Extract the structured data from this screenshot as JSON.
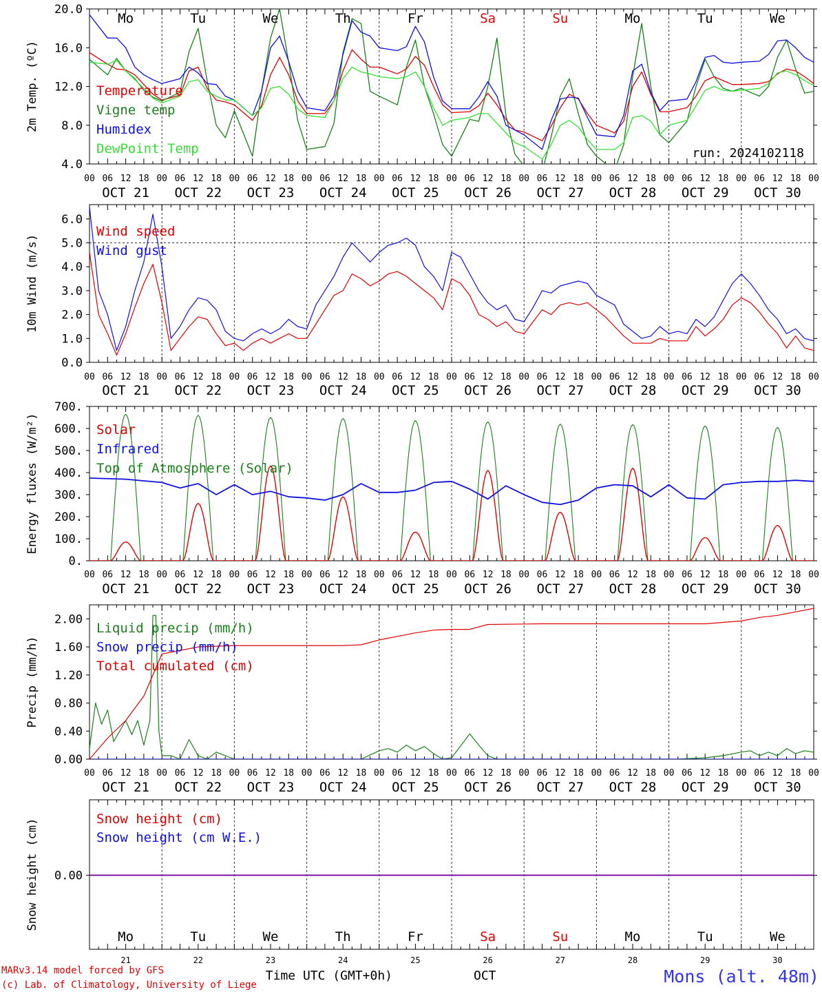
{
  "colors": {
    "red": "#e00000",
    "green": "#1a7f1a",
    "blue": "#1010e0",
    "lightgreen": "#33e033",
    "purple": "#8000a0",
    "station": "#3333ee",
    "axis": "#000000",
    "weekend": "#e00000"
  },
  "days": {
    "weekday_labels": [
      "Mo",
      "Tu",
      "We",
      "Th",
      "Fr",
      "Sa",
      "Su",
      "Mo",
      "Tu",
      "We"
    ],
    "weekend_flags": [
      false,
      false,
      false,
      false,
      false,
      true,
      true,
      false,
      false,
      false
    ],
    "date_labels": [
      "OCT 21",
      "OCT 22",
      "OCT 23",
      "OCT 24",
      "OCT 25",
      "OCT 26",
      "OCT 27",
      "OCT 28",
      "OCT 29",
      "OCT 30"
    ],
    "bottom_day_numbers": [
      "21",
      "22",
      "23",
      "24",
      "25",
      "26",
      "27",
      "28",
      "29",
      "30"
    ],
    "hour_ticks": [
      "00",
      "06",
      "12",
      "18"
    ],
    "final_hour_tick": "00"
  },
  "footer": {
    "model_line": "MARv3.14 model forced by GFS",
    "credit_line": "(c) Lab. of Climatology, University of Liege",
    "xlabel": "Time UTC (GMT+0h)",
    "month": "OCT",
    "station": "Mons (alt. 48m)"
  },
  "chart_data": [
    {
      "type": "line",
      "ylabel": "2m Temp. (ºC)",
      "ylim": [
        4.0,
        20.0
      ],
      "yticks": [
        "4.0",
        "8.0",
        "12.0",
        "16.0",
        "20.0"
      ],
      "ytick_values": [
        4,
        8,
        12,
        16,
        20
      ],
      "annotation": "run: 2024102118",
      "x_hours": [
        0,
        6,
        9,
        12,
        15,
        18,
        21,
        24,
        30,
        33,
        36,
        39,
        42,
        45,
        48,
        54,
        57,
        60,
        63,
        66,
        69,
        72,
        78,
        81,
        84,
        87,
        90,
        93,
        96,
        102,
        105,
        108,
        111,
        114,
        117,
        120,
        126,
        129,
        132,
        135,
        138,
        141,
        144,
        150,
        153,
        156,
        159,
        162,
        165,
        168,
        174,
        177,
        180,
        183,
        186,
        189,
        192,
        198,
        201,
        204,
        207,
        210,
        213,
        216,
        222,
        225,
        228,
        231,
        234,
        237,
        240
      ],
      "series": [
        {
          "name": "Temperature",
          "color": "red",
          "values": [
            15.5,
            14.3,
            13.8,
            13.7,
            13.2,
            12.2,
            11.2,
            10.6,
            11.1,
            13.6,
            14.0,
            11.8,
            10.6,
            10.4,
            10.1,
            8.5,
            10.0,
            13.2,
            15.0,
            13.2,
            10.5,
            9.2,
            9.2,
            10.5,
            13.6,
            15.8,
            14.8,
            14.0,
            14.0,
            13.3,
            13.8,
            15.1,
            14.2,
            12.0,
            10.1,
            9.3,
            9.4,
            10.0,
            11.3,
            10.1,
            8.6,
            7.5,
            7.3,
            6.4,
            7.9,
            9.8,
            11.2,
            10.7,
            9.2,
            8.0,
            7.2,
            8.4,
            12.0,
            13.5,
            11.2,
            9.4,
            9.4,
            9.8,
            11.0,
            12.6,
            13.0,
            12.6,
            12.2,
            12.2,
            12.3,
            12.5,
            13.3,
            13.8,
            13.6,
            13.0,
            12.3
          ]
        },
        {
          "name": "Vigne temp",
          "color": "green",
          "values": [
            14.8,
            13.2,
            14.9,
            13.6,
            12.8,
            11.6,
            10.9,
            10.5,
            11.4,
            15.6,
            18.0,
            12.6,
            8.0,
            6.7,
            9.5,
            4.8,
            11.5,
            17.0,
            20.0,
            14.5,
            8.5,
            5.5,
            5.8,
            8.2,
            15.5,
            19.0,
            18.5,
            11.5,
            11.0,
            10.1,
            14.0,
            16.8,
            12.0,
            9.2,
            6.0,
            4.8,
            8.6,
            8.4,
            12.0,
            17.0,
            9.0,
            5.0,
            3.8,
            3.2,
            6.8,
            11.0,
            12.8,
            9.2,
            6.0,
            4.8,
            3.3,
            6.0,
            13.0,
            18.5,
            12.0,
            7.0,
            6.2,
            8.4,
            12.0,
            14.8,
            13.0,
            11.8,
            11.5,
            11.8,
            11.0,
            12.0,
            15.0,
            16.8,
            13.8,
            11.3,
            11.5
          ]
        },
        {
          "name": "Humidex",
          "color": "blue",
          "values": [
            19.4,
            17.0,
            17.0,
            16.0,
            14.0,
            13.2,
            12.7,
            12.3,
            12.8,
            14.0,
            13.4,
            12.3,
            12.2,
            11.0,
            10.6,
            9.0,
            11.5,
            16.0,
            17.2,
            14.6,
            11.5,
            9.8,
            9.5,
            11.0,
            15.3,
            18.8,
            17.6,
            17.2,
            16.0,
            15.7,
            16.1,
            18.2,
            16.6,
            13.0,
            10.5,
            9.7,
            9.7,
            10.9,
            12.5,
            11.0,
            8.0,
            7.5,
            7.0,
            5.5,
            8.5,
            10.7,
            10.9,
            10.8,
            8.8,
            7.0,
            6.8,
            9.0,
            13.6,
            14.3,
            11.4,
            9.5,
            10.5,
            10.7,
            12.5,
            15.0,
            15.2,
            14.5,
            14.4,
            14.5,
            14.6,
            15.3,
            16.7,
            16.8,
            16.0,
            15.0,
            14.5
          ]
        },
        {
          "name": "DewPoint Temp",
          "color": "lightgreen",
          "values": [
            14.5,
            14.3,
            14.7,
            13.6,
            12.7,
            11.8,
            10.8,
            10.3,
            11.0,
            12.5,
            12.7,
            11.5,
            11.0,
            10.6,
            10.6,
            9.0,
            9.8,
            11.8,
            12.0,
            11.2,
            9.7,
            9.0,
            8.8,
            10.5,
            12.8,
            14.0,
            13.5,
            13.3,
            13.0,
            12.8,
            13.0,
            13.5,
            12.0,
            9.8,
            8.0,
            8.5,
            8.8,
            9.2,
            9.2,
            8.2,
            7.2,
            6.2,
            5.8,
            4.5,
            6.0,
            8.0,
            8.5,
            7.8,
            6.5,
            5.5,
            5.5,
            6.2,
            8.8,
            9.0,
            8.4,
            7.0,
            8.0,
            8.5,
            10.0,
            11.6,
            12.0,
            11.6,
            11.5,
            11.6,
            11.8,
            12.3,
            13.4,
            13.6,
            13.2,
            12.6,
            12.1
          ]
        }
      ],
      "legend": [
        "Temperature",
        "Vigne temp",
        "Humidex",
        "DewPoint Temp"
      ]
    },
    {
      "type": "line",
      "ylabel": "10m Wind (m/s)",
      "ylim": [
        0.0,
        6.6
      ],
      "yticks": [
        "0.0",
        "1.0",
        "2.0",
        "3.0",
        "4.0",
        "5.0",
        "6.0"
      ],
      "ytick_values": [
        0,
        1,
        2,
        3,
        4,
        5,
        6
      ],
      "dashed_reference": 5.0,
      "x_hours": [
        0,
        3,
        6,
        9,
        12,
        15,
        18,
        21,
        24,
        27,
        30,
        33,
        36,
        39,
        42,
        45,
        48,
        51,
        54,
        57,
        60,
        63,
        66,
        69,
        72,
        75,
        78,
        81,
        84,
        87,
        90,
        93,
        96,
        99,
        102,
        105,
        108,
        111,
        114,
        117,
        120,
        123,
        126,
        129,
        132,
        135,
        138,
        141,
        144,
        147,
        150,
        153,
        156,
        159,
        162,
        165,
        168,
        171,
        174,
        177,
        180,
        183,
        186,
        189,
        192,
        195,
        198,
        201,
        204,
        207,
        210,
        213,
        216,
        219,
        222,
        225,
        228,
        231,
        234,
        237,
        240
      ],
      "series": [
        {
          "name": "Wind speed",
          "color": "red",
          "values": [
            4.6,
            2.0,
            1.2,
            0.3,
            1.2,
            2.3,
            3.3,
            4.1,
            2.5,
            0.5,
            1.0,
            1.5,
            1.9,
            1.8,
            1.2,
            0.7,
            0.8,
            0.5,
            0.8,
            1.0,
            0.8,
            1.0,
            1.2,
            1.0,
            1.0,
            1.6,
            2.2,
            2.8,
            3.0,
            3.7,
            3.5,
            3.2,
            3.4,
            3.7,
            3.8,
            3.6,
            3.3,
            3.0,
            2.7,
            2.2,
            3.5,
            3.3,
            2.8,
            2.0,
            1.8,
            1.5,
            1.7,
            1.3,
            1.2,
            1.7,
            2.2,
            2.0,
            2.4,
            2.5,
            2.4,
            2.5,
            2.2,
            1.9,
            1.5,
            1.1,
            0.8,
            0.8,
            0.8,
            1.0,
            0.9,
            0.9,
            0.9,
            1.5,
            1.1,
            1.4,
            1.8,
            2.4,
            2.7,
            2.5,
            2.1,
            1.6,
            1.2,
            0.6,
            1.1,
            0.6,
            0.5
          ]
        },
        {
          "name": "Wind gust",
          "color": "blue",
          "values": [
            6.5,
            3.0,
            2.0,
            0.5,
            1.5,
            3.0,
            4.2,
            6.2,
            4.0,
            1.0,
            1.5,
            2.2,
            2.7,
            2.6,
            2.2,
            1.3,
            1.0,
            0.9,
            1.2,
            1.4,
            1.2,
            1.4,
            1.8,
            1.5,
            1.4,
            2.4,
            3.0,
            3.6,
            4.4,
            5.0,
            4.6,
            4.2,
            4.6,
            4.9,
            5.0,
            5.2,
            4.9,
            4.0,
            3.6,
            3.0,
            4.6,
            4.4,
            3.7,
            3.0,
            2.5,
            2.2,
            2.4,
            1.8,
            1.7,
            2.3,
            3.0,
            2.9,
            3.2,
            3.3,
            3.4,
            3.3,
            2.8,
            2.6,
            2.4,
            1.6,
            1.3,
            1.0,
            1.1,
            1.5,
            1.2,
            1.3,
            1.2,
            1.8,
            1.5,
            1.9,
            2.6,
            3.3,
            3.7,
            3.3,
            2.8,
            2.2,
            1.8,
            1.2,
            1.4,
            1.0,
            0.9
          ]
        }
      ],
      "legend": [
        "Wind speed",
        "Wind gust"
      ]
    },
    {
      "type": "line",
      "ylabel": "Energy fluxes (W/m²)",
      "ylim": [
        0,
        700
      ],
      "yticks": [
        "0.",
        "100.",
        "200.",
        "300.",
        "400.",
        "500.",
        "600.",
        "700."
      ],
      "ytick_values": [
        0,
        100,
        200,
        300,
        400,
        500,
        600,
        700
      ],
      "series": [
        {
          "name": "Solar",
          "color": "red",
          "day_peaks": [
            85,
            260,
            430,
            290,
            130,
            410,
            220,
            420,
            105,
            160
          ]
        },
        {
          "name": "Infrared",
          "color": "blue",
          "x_hours": [
            0,
            12,
            24,
            30,
            36,
            42,
            48,
            54,
            60,
            66,
            72,
            78,
            84,
            90,
            96,
            102,
            108,
            114,
            120,
            126,
            132,
            138,
            144,
            150,
            156,
            162,
            168,
            174,
            180,
            186,
            192,
            198,
            204,
            210,
            216,
            222,
            228,
            234,
            240
          ],
          "values": [
            375,
            370,
            355,
            330,
            350,
            300,
            345,
            300,
            315,
            290,
            285,
            275,
            300,
            350,
            310,
            310,
            320,
            355,
            360,
            325,
            280,
            340,
            300,
            265,
            255,
            275,
            330,
            345,
            340,
            290,
            345,
            285,
            280,
            345,
            355,
            360,
            360,
            365,
            360
          ]
        },
        {
          "name": "Top of Atmosphere (Solar)",
          "color": "green",
          "day_peaks": [
            665,
            660,
            650,
            645,
            635,
            630,
            620,
            618,
            612,
            605
          ]
        }
      ],
      "legend": [
        "Solar",
        "Infrared",
        "Top of Atmosphere (Solar)"
      ]
    },
    {
      "type": "line",
      "ylabel": "Precip (mm/h)",
      "ylim": [
        0.0,
        2.2
      ],
      "yticks": [
        "0.00",
        "0.40",
        "0.80",
        "1.20",
        "1.60",
        "2.00"
      ],
      "ytick_values": [
        0,
        0.4,
        0.8,
        1.2,
        1.6,
        2.0
      ],
      "series": [
        {
          "name": "Liquid precip (mm/h)",
          "color": "green",
          "x_hours": [
            0,
            2,
            4,
            6,
            8,
            10,
            12,
            14,
            16,
            18,
            20,
            21,
            22,
            23,
            24,
            27,
            30,
            33,
            36,
            39,
            42,
            48,
            60,
            72,
            78,
            84,
            90,
            96,
            99,
            102,
            105,
            108,
            111,
            114,
            117,
            120,
            126,
            129,
            132,
            135,
            138,
            144,
            165,
            180,
            195,
            204,
            210,
            216,
            219,
            222,
            225,
            228,
            231,
            234,
            237,
            240
          ],
          "values": [
            0.15,
            0.8,
            0.5,
            0.7,
            0.25,
            0.4,
            0.55,
            0.35,
            0.55,
            0.2,
            0.55,
            2.05,
            2.05,
            0.4,
            0.05,
            0.05,
            0.0,
            0.28,
            0.05,
            0.0,
            0.1,
            0.0,
            0.0,
            0.0,
            0.0,
            0.0,
            0.0,
            0.12,
            0.15,
            0.1,
            0.2,
            0.12,
            0.18,
            0.08,
            0.0,
            0.02,
            0.36,
            0.2,
            0.05,
            0.0,
            0.0,
            0.0,
            0.0,
            0.0,
            0.0,
            0.02,
            0.05,
            0.1,
            0.12,
            0.05,
            0.1,
            0.05,
            0.15,
            0.08,
            0.12,
            0.1
          ]
        },
        {
          "name": "Snow precip (mm/h)",
          "color": "blue",
          "x_hours": [
            0,
            240
          ],
          "values": [
            0,
            0
          ]
        },
        {
          "name": "Total cumulated (cm)",
          "color": "red",
          "x_hours": [
            0,
            6,
            12,
            18,
            22,
            24,
            36,
            48,
            60,
            72,
            84,
            90,
            96,
            102,
            108,
            114,
            120,
            126,
            132,
            150,
            168,
            186,
            204,
            216,
            222,
            228,
            234,
            240
          ],
          "values": [
            0.0,
            0.3,
            0.55,
            0.9,
            1.3,
            1.5,
            1.6,
            1.62,
            1.62,
            1.62,
            1.62,
            1.63,
            1.7,
            1.75,
            1.8,
            1.84,
            1.85,
            1.85,
            1.92,
            1.93,
            1.93,
            1.93,
            1.93,
            1.97,
            2.02,
            2.05,
            2.1,
            2.15
          ]
        }
      ],
      "legend": [
        "Liquid precip (mm/h)",
        "Snow precip (mm/h)",
        "Total cumulated (cm)"
      ]
    },
    {
      "type": "line",
      "ylabel": "Snow height (cm)",
      "yticks": [
        "0.00"
      ],
      "ytick_values": [
        0
      ],
      "series": [
        {
          "name": "Snow height (cm)",
          "color": "red",
          "x_hours": [
            0,
            240
          ],
          "values": [
            0,
            0
          ]
        },
        {
          "name": "Snow height (cm W.E.)",
          "color": "blue",
          "x_hours": [
            0,
            240
          ],
          "values": [
            0,
            0
          ]
        }
      ],
      "legend": [
        "Snow height (cm)",
        "Snow height (cm W.E.)"
      ]
    }
  ]
}
